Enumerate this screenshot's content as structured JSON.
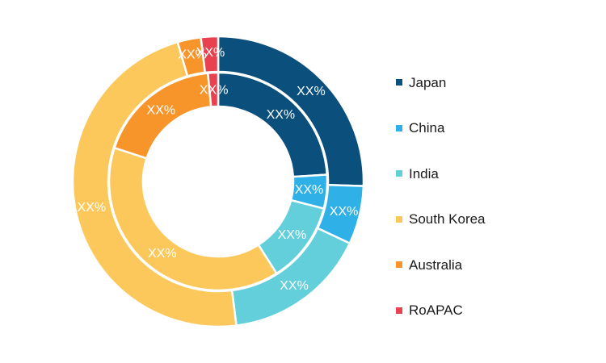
{
  "chart_data": {
    "type": "pie",
    "categories": [
      "Japan",
      "China",
      "India",
      "South Korea",
      "Australia",
      "RoAPAC"
    ],
    "colors": [
      "#0b4f7c",
      "#2fb1e8",
      "#62cfdb",
      "#fcc85b",
      "#f7952b",
      "#e8414f"
    ],
    "series": [
      {
        "values": [
          25.5,
          6.5,
          16.0,
          47.5,
          2.6,
          1.9
        ],
        "labels": [
          "XX%",
          "XX%",
          "XX%",
          "XX%",
          "XX%",
          "XX%"
        ]
      },
      {
        "values": [
          24.0,
          5.0,
          12.0,
          39.0,
          18.5,
          1.5
        ],
        "labels": [
          "XX%",
          "XX%",
          "XX%",
          "XX%",
          "XX%",
          "XX%"
        ]
      }
    ],
    "legend_position": "right"
  }
}
